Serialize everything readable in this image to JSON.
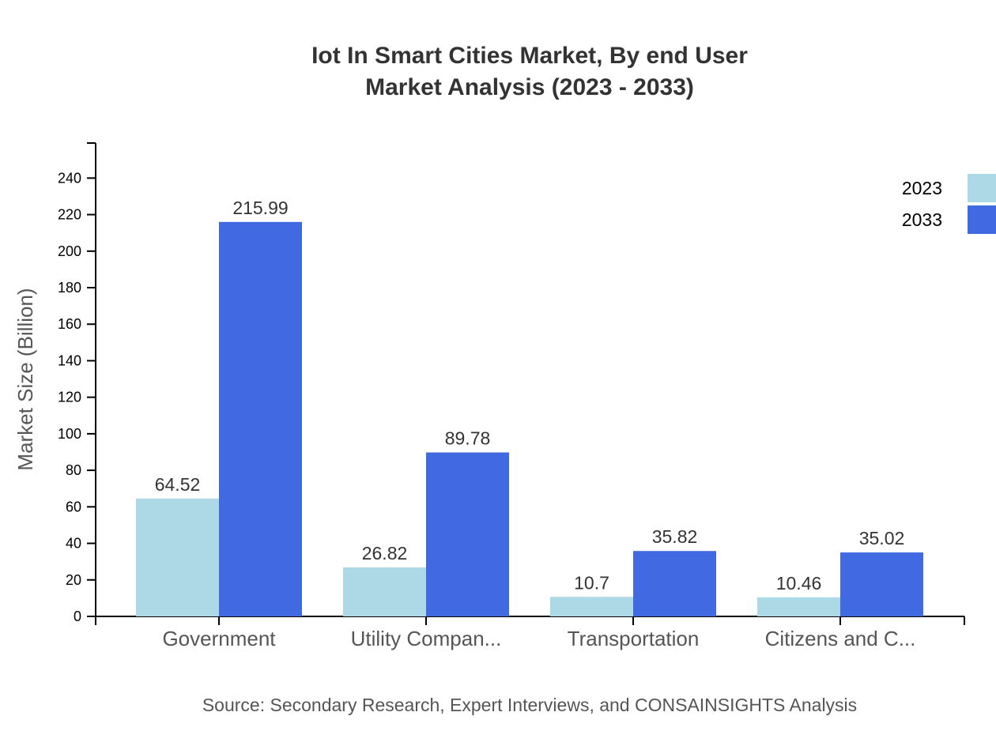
{
  "chart_data": {
    "type": "bar",
    "title_line1": "Iot In Smart Cities Market, By end User",
    "title_line2": "Market Analysis (2023 - 2033)",
    "xlabel": "",
    "ylabel": "Market Size (Billion)",
    "ylim": [
      0,
      259.19
    ],
    "yticks": [
      0,
      20,
      40,
      60,
      80,
      100,
      120,
      140,
      160,
      180,
      200,
      220,
      240
    ],
    "categories": [
      "Government",
      "Utility Compan...",
      "Transportation",
      "Citizens and C..."
    ],
    "series": [
      {
        "name": "2023",
        "color": "#ADD8E6",
        "values": [
          64.52,
          26.82,
          10.7,
          10.46
        ]
      },
      {
        "name": "2033",
        "color": "#4169E1",
        "values": [
          215.99,
          89.78,
          35.82,
          35.02
        ]
      }
    ],
    "legend_position": "top-right",
    "grid": false,
    "source": "Source: Secondary Research, Expert Interviews, and CONSAINSIGHTS Analysis"
  }
}
